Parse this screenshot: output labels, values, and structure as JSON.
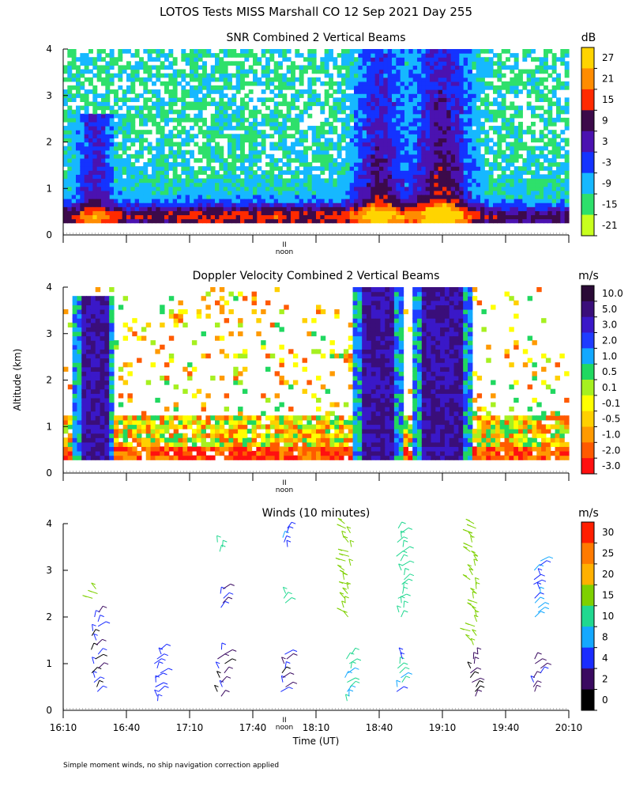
{
  "figure": {
    "title": "LOTOS Tests MISS Marshall CO  12 Sep 2021 Day 255",
    "ylabel": "Altitude (km)",
    "xlabel": "Time (UT)",
    "noon_label": "noon",
    "noon_marker": "II",
    "footnote": "Simple moment winds, no ship navigation correction applied"
  },
  "chart_data": [
    {
      "type": "heatmap",
      "title": "SNR Combined 2 Vertical Beams",
      "unit": "dB",
      "x_range": [
        "16:10",
        "20:10"
      ],
      "ylim": [
        0,
        4
      ],
      "yticks": [
        "0",
        "1",
        "2",
        "3",
        "4"
      ],
      "colorbar": {
        "labels": [
          "27",
          "21",
          "15",
          "9",
          "3",
          "-3",
          "-9",
          "-15",
          "-21"
        ],
        "colors": [
          "#ffd400",
          "#ff8c00",
          "#ff2a00",
          "#3c0a4a",
          "#4b12b0",
          "#1433ff",
          "#16b8ff",
          "#2ee06b",
          "#c8ff1e"
        ]
      },
      "features": [
        {
          "time": "16:25",
          "alt_km": [
            0.3,
            2.6
          ],
          "snr_db": [
            -3,
            3
          ]
        },
        {
          "time": "18:40",
          "alt_km": [
            0.3,
            4.0
          ],
          "snr_db": [
            3,
            21
          ]
        },
        {
          "time": "19:10",
          "alt_km": [
            0.3,
            4.0
          ],
          "snr_db": [
            3,
            21
          ]
        }
      ]
    },
    {
      "type": "heatmap",
      "title": "Doppler Velocity Combined 2 Vertical Beams",
      "unit": "m/s",
      "x_range": [
        "16:10",
        "20:10"
      ],
      "ylim": [
        0,
        4
      ],
      "yticks": [
        "0",
        "1",
        "2",
        "3",
        "4"
      ],
      "colorbar": {
        "labels": [
          "10.0",
          "5.0",
          "3.0",
          "2.0",
          "1.0",
          "0.5",
          "0.1",
          "-0.1",
          "-0.5",
          "-1.0",
          "-2.0",
          "-3.0"
        ],
        "colors": [
          "#2a0a36",
          "#3a0e7a",
          "#3a18c8",
          "#1f3cff",
          "#12a8ff",
          "#20d860",
          "#a6f020",
          "#ffff00",
          "#ffd000",
          "#ff9a00",
          "#ff5a00",
          "#ff1010"
        ]
      }
    },
    {
      "type": "scatter",
      "title": "Winds (10 minutes)",
      "unit": "m/s",
      "x_range": [
        "16:10",
        "20:10"
      ],
      "xticks": [
        "16:10",
        "16:40",
        "17:10",
        "17:40",
        "18:10",
        "18:40",
        "19:10",
        "19:40",
        "20:10"
      ],
      "ylim": [
        0,
        4
      ],
      "yticks": [
        "0",
        "1",
        "2",
        "3",
        "4"
      ],
      "colorbar": {
        "labels": [
          "30",
          "25",
          "20",
          "15",
          "10",
          "8",
          "4",
          "2",
          "0"
        ],
        "colors": [
          "#ff1e00",
          "#ff7a00",
          "#ffb000",
          "#7ed000",
          "#20d890",
          "#14a8ff",
          "#1a2cff",
          "#3a0a60",
          "#000000"
        ]
      },
      "profiles": [
        {
          "time": "16:25",
          "segments": [
            {
              "alt_km": [
                0.4,
                2.1
              ],
              "speed_ms": 3
            },
            {
              "alt_km": [
                2.4,
                2.6
              ],
              "speed_ms": 18
            }
          ]
        },
        {
          "time": "16:55",
          "segments": [
            {
              "alt_km": [
                0.2,
                1.3
              ],
              "speed_ms": 6
            }
          ]
        },
        {
          "time": "17:25",
          "segments": [
            {
              "alt_km": [
                0.3,
                1.3
              ],
              "speed_ms": 3
            },
            {
              "alt_km": [
                2.2,
                2.6
              ],
              "speed_ms": 4
            },
            {
              "alt_km": [
                3.4,
                3.6
              ],
              "speed_ms": 12
            }
          ]
        },
        {
          "time": "17:55",
          "segments": [
            {
              "alt_km": [
                0.4,
                1.2
              ],
              "speed_ms": 3
            },
            {
              "alt_km": [
                2.3,
                2.5
              ],
              "speed_ms": 12
            },
            {
              "alt_km": [
                3.5,
                3.9
              ],
              "speed_ms": 8
            }
          ]
        },
        {
          "time": "18:25",
          "segments": [
            {
              "alt_km": [
                0.2,
                1.2
              ],
              "speed_ms": 10
            },
            {
              "alt_km": [
                2.0,
                4.0
              ],
              "speed_ms": 17
            }
          ]
        },
        {
          "time": "18:50",
          "segments": [
            {
              "alt_km": [
                0.4,
                1.2
              ],
              "speed_ms": 9
            },
            {
              "alt_km": [
                2.0,
                3.9
              ],
              "speed_ms": 12
            }
          ]
        },
        {
          "time": "19:25",
          "segments": [
            {
              "alt_km": [
                0.3,
                1.2
              ],
              "speed_ms": 2
            },
            {
              "alt_km": [
                1.4,
                4.0
              ],
              "speed_ms": 18
            }
          ]
        },
        {
          "time": "19:55",
          "segments": [
            {
              "alt_km": [
                0.4,
                1.1
              ],
              "speed_ms": 4
            },
            {
              "alt_km": [
                2.0,
                3.2
              ],
              "speed_ms": 8
            }
          ]
        }
      ]
    }
  ]
}
